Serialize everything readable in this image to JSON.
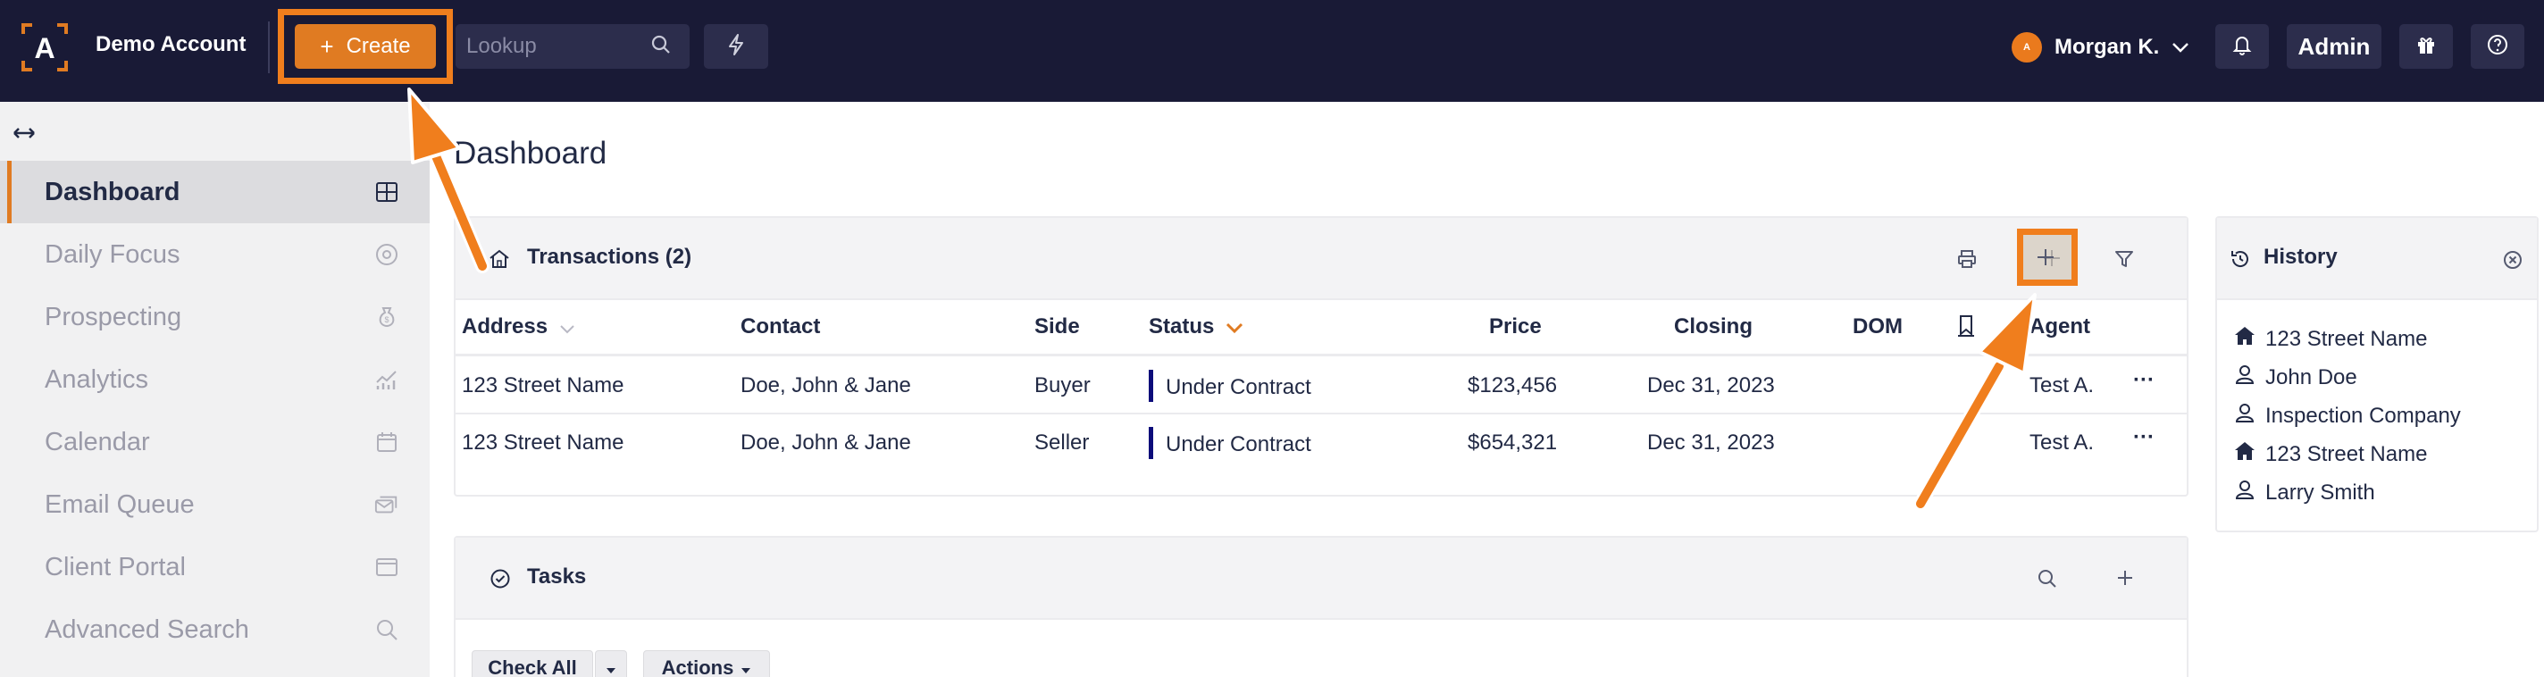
{
  "header": {
    "account_name": "Demo Account",
    "create_label": "Create",
    "lookup_placeholder": "Lookup",
    "user_name": "Morgan K.",
    "avatar_letter": "A",
    "admin_label": "Admin"
  },
  "sidebar": {
    "items": [
      {
        "label": "Dashboard",
        "icon": "grid-icon",
        "active": true
      },
      {
        "label": "Daily Focus",
        "icon": "target-icon"
      },
      {
        "label": "Prospecting",
        "icon": "money-bag-icon"
      },
      {
        "label": "Analytics",
        "icon": "chart-icon"
      },
      {
        "label": "Calendar",
        "icon": "calendar-icon"
      },
      {
        "label": "Email Queue",
        "icon": "email-queue-icon"
      },
      {
        "label": "Client Portal",
        "icon": "portal-icon"
      },
      {
        "label": "Advanced Search",
        "icon": "search-icon"
      }
    ]
  },
  "main": {
    "page_title": "Dashboard",
    "transactions": {
      "title": "Transactions (2)",
      "columns": [
        "Address",
        "Contact",
        "Side",
        "Status",
        "Price",
        "Closing",
        "DOM",
        "Agent"
      ],
      "rows": [
        {
          "address": "123 Street Name",
          "contact": "Doe, John & Jane",
          "side": "Buyer",
          "status": "Under Contract",
          "price": "$123,456",
          "closing": "Dec 31, 2023",
          "dom": "",
          "agent": "Test A."
        },
        {
          "address": "123 Street Name",
          "contact": "Doe, John & Jane",
          "side": "Seller",
          "status": "Under Contract",
          "price": "$654,321",
          "closing": "Dec 31, 2023",
          "dom": "",
          "agent": "Test A."
        }
      ]
    },
    "tasks": {
      "title": "Tasks",
      "check_all_label": "Check All",
      "actions_label": "Actions"
    }
  },
  "history": {
    "title": "History",
    "items": [
      {
        "label": "123 Street Name",
        "icon": "home-icon"
      },
      {
        "label": "John Doe",
        "icon": "person-icon"
      },
      {
        "label": "Inspection Company",
        "icon": "person-icon"
      },
      {
        "label": "123 Street Name",
        "icon": "home-icon"
      },
      {
        "label": "Larry Smith",
        "icon": "person-icon"
      }
    ]
  },
  "colors": {
    "topbar": "#191a36",
    "accent": "#e07b22",
    "status_bar": "#0c0c7a"
  }
}
